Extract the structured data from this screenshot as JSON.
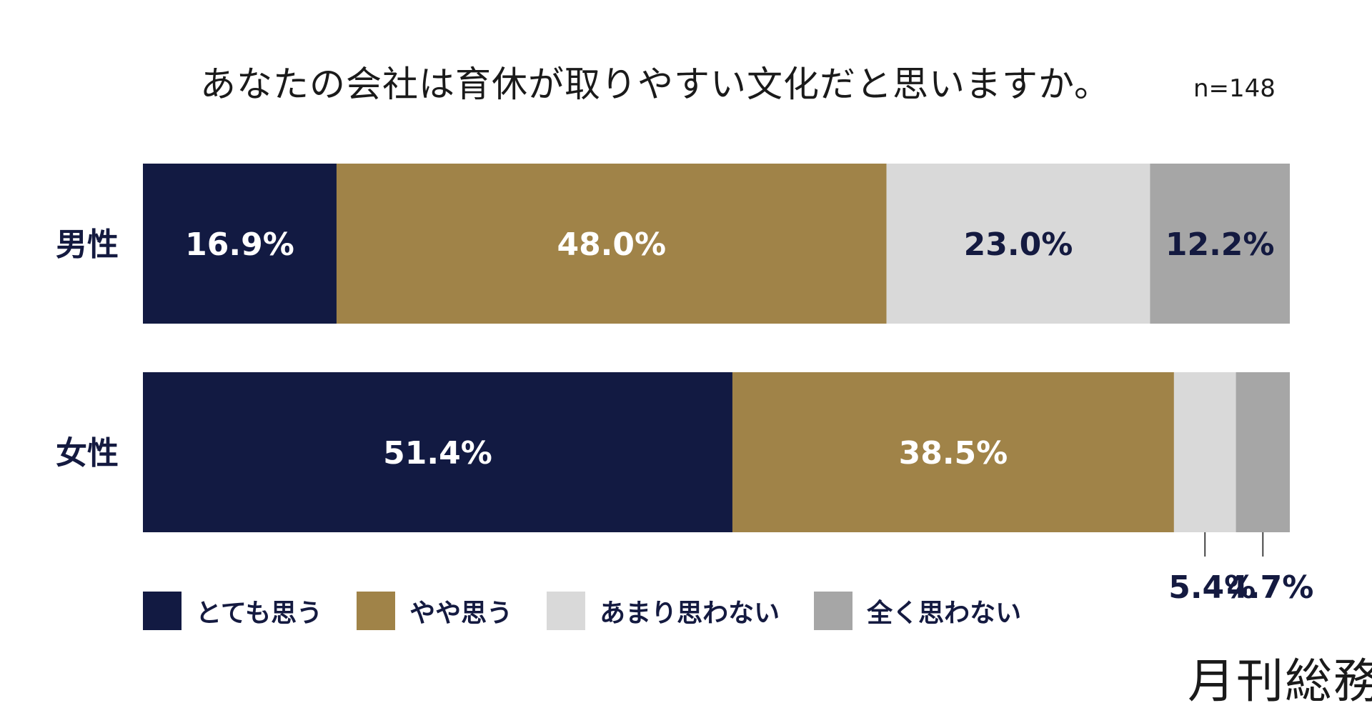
{
  "chart_data": {
    "type": "bar",
    "orientation": "horizontal-stacked-100",
    "title": "あなたの会社は育休が取りやすい文化だと思いますか。",
    "sample_size": "n=148",
    "categories": [
      "男性",
      "女性"
    ],
    "series": [
      {
        "name": "とても思う",
        "color": "#121a42",
        "values": [
          16.9,
          51.4
        ],
        "labels": [
          "16.9%",
          "51.4%"
        ]
      },
      {
        "name": "やや思う",
        "color": "#a08348",
        "values": [
          48.0,
          38.5
        ],
        "labels": [
          "48.0%",
          "38.5%"
        ]
      },
      {
        "name": "あまり思わない",
        "color": "#d9d9d9",
        "values": [
          23.0,
          5.4
        ],
        "labels": [
          "23.0%",
          "5.4%"
        ]
      },
      {
        "name": "全く思わない",
        "color": "#a6a6a6",
        "values": [
          12.2,
          4.7
        ],
        "labels": [
          "12.2%",
          "4.7%"
        ]
      }
    ],
    "label_colors": [
      "#ffffff",
      "#ffffff",
      "#141a40",
      "#141a40"
    ],
    "legend_position": "bottom"
  },
  "brand": "月刊総務"
}
